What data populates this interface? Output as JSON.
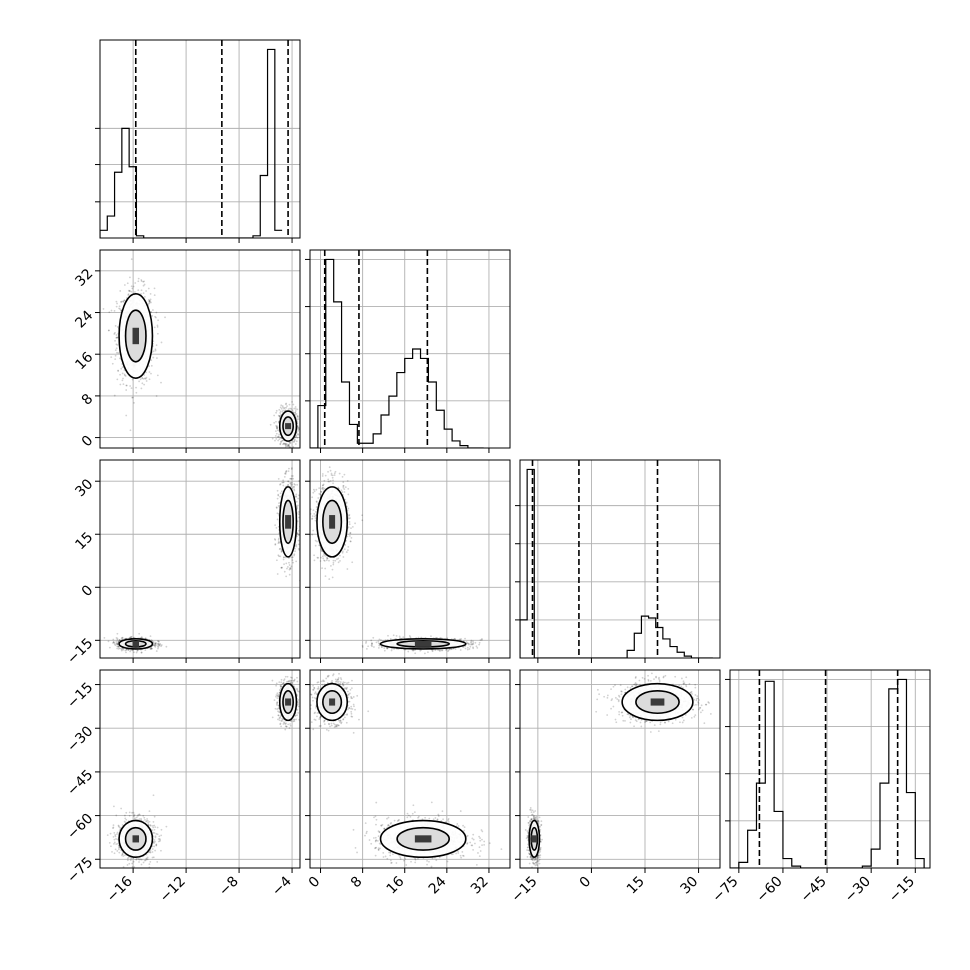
{
  "chart_data": {
    "type": "corner",
    "title": "",
    "grid": true,
    "colors": {
      "line": "#000000",
      "grid": "#b0b0b0",
      "scatter": "#000000",
      "background": "#ffffff"
    },
    "parameters": [
      {
        "range": [
          -18.5,
          -3.4
        ],
        "ticks": [
          -16,
          -12,
          -8,
          -4
        ],
        "tick_labels": [
          "−16",
          "−12",
          "−8",
          "−4"
        ],
        "quantiles": [
          -15.8,
          -9.3,
          -4.3
        ],
        "hist_bins": [
          -18.5,
          -17.95,
          -17.4,
          -16.85,
          -16.3,
          -15.75,
          -15.2,
          -14.65,
          -14.1,
          -13.55,
          -13.0,
          -12.45,
          -11.9,
          -11.35,
          -10.8,
          -10.25,
          -9.7,
          -9.15,
          -8.6,
          -8.05,
          -7.5,
          -6.95,
          -6.4,
          -5.85,
          -5.3,
          -4.75,
          -4.2,
          -3.65
        ],
        "hist_counts": [
          0.07,
          0.2,
          0.6,
          1.0,
          0.65,
          0.02,
          0.0,
          0.0,
          0.0,
          0.0,
          0.0,
          0.0,
          0.0,
          0.0,
          0.0,
          0.0,
          0.0,
          0.0,
          0.0,
          0.0,
          0.0,
          0.02,
          0.57,
          1.72,
          0.07
        ],
        "hist_grid": [
          0.33,
          0.67,
          1.0
        ]
      },
      {
        "range": [
          -2,
          36
        ],
        "ticks": [
          0,
          8,
          16,
          24,
          32
        ],
        "tick_labels": [
          "0",
          "8",
          "16",
          "24",
          "32"
        ],
        "quantiles": [
          0.8,
          7.3,
          20.3
        ],
        "hist_bins": [
          -2,
          -0.5,
          1,
          2.5,
          4,
          5.5,
          7,
          8.5,
          10,
          11.5,
          13,
          14.5,
          16,
          17.5,
          19,
          20.5,
          22,
          23.5,
          25,
          26.5,
          28,
          29.5,
          31
        ],
        "hist_counts": [
          0.0,
          0.18,
          0.8,
          0.62,
          0.28,
          0.1,
          0.02,
          0.02,
          0.06,
          0.14,
          0.22,
          0.32,
          0.38,
          0.42,
          0.38,
          0.28,
          0.16,
          0.08,
          0.03,
          0.01,
          0.0,
          0.0
        ],
        "hist_grid": [
          0.2,
          0.4,
          0.6,
          0.8
        ]
      },
      {
        "range": [
          -20,
          36
        ],
        "ticks": [
          -15,
          0,
          15,
          30
        ],
        "tick_labels": [
          "−15",
          "0",
          "15",
          "30"
        ],
        "quantiles": [
          -16.5,
          -3.5,
          18.5
        ],
        "hist_bins": [
          -20,
          -18,
          -16,
          -14,
          -12,
          -10,
          -8,
          -6,
          -4,
          -2,
          0,
          2,
          4,
          6,
          8,
          10,
          12,
          14,
          16,
          18,
          20,
          22,
          24,
          26,
          28,
          30,
          32,
          34
        ],
        "hist_counts": [
          0.2,
          0.99,
          0.0,
          0.0,
          0.0,
          0.0,
          0.0,
          0.0,
          0.0,
          0.0,
          0.0,
          0.0,
          0.0,
          0.0,
          0.0,
          0.04,
          0.13,
          0.22,
          0.21,
          0.16,
          0.1,
          0.06,
          0.03,
          0.01,
          0.0,
          0.0,
          0.0
        ],
        "hist_grid": [
          0.2,
          0.4,
          0.6,
          0.8
        ]
      },
      {
        "range": [
          -78,
          -10
        ],
        "ticks": [
          -75,
          -60,
          -45,
          -30,
          -15
        ],
        "tick_labels": [
          "−75",
          "−60",
          "−45",
          "−30",
          "−15"
        ],
        "quantiles": [
          -68,
          -45.5,
          -21
        ],
        "hist_bins": [
          -78,
          -75,
          -72,
          -69,
          -66,
          -63,
          -60,
          -57,
          -54,
          -51,
          -48,
          -45,
          -42,
          -39,
          -36,
          -33,
          -30,
          -27,
          -24,
          -21,
          -18,
          -15,
          -12
        ],
        "hist_counts": [
          0.0,
          0.03,
          0.2,
          0.45,
          0.99,
          0.3,
          0.05,
          0.01,
          0.0,
          0.0,
          0.0,
          0.0,
          0.0,
          0.0,
          0.0,
          0.01,
          0.1,
          0.45,
          0.95,
          1.0,
          0.4,
          0.05,
          0.0
        ],
        "hist_grid": [
          0.25,
          0.5,
          0.75,
          1.0
        ]
      }
    ],
    "clusters": [
      [
        -15.8,
        19.5,
        -16.0,
        -68.0
      ],
      [
        -4.3,
        2.2,
        18.5,
        -21.0
      ]
    ],
    "cluster_spreads": [
      [
        0.7,
        4.5,
        0.8,
        3.5
      ],
      [
        0.35,
        1.6,
        5.5,
        3.5
      ]
    ]
  }
}
